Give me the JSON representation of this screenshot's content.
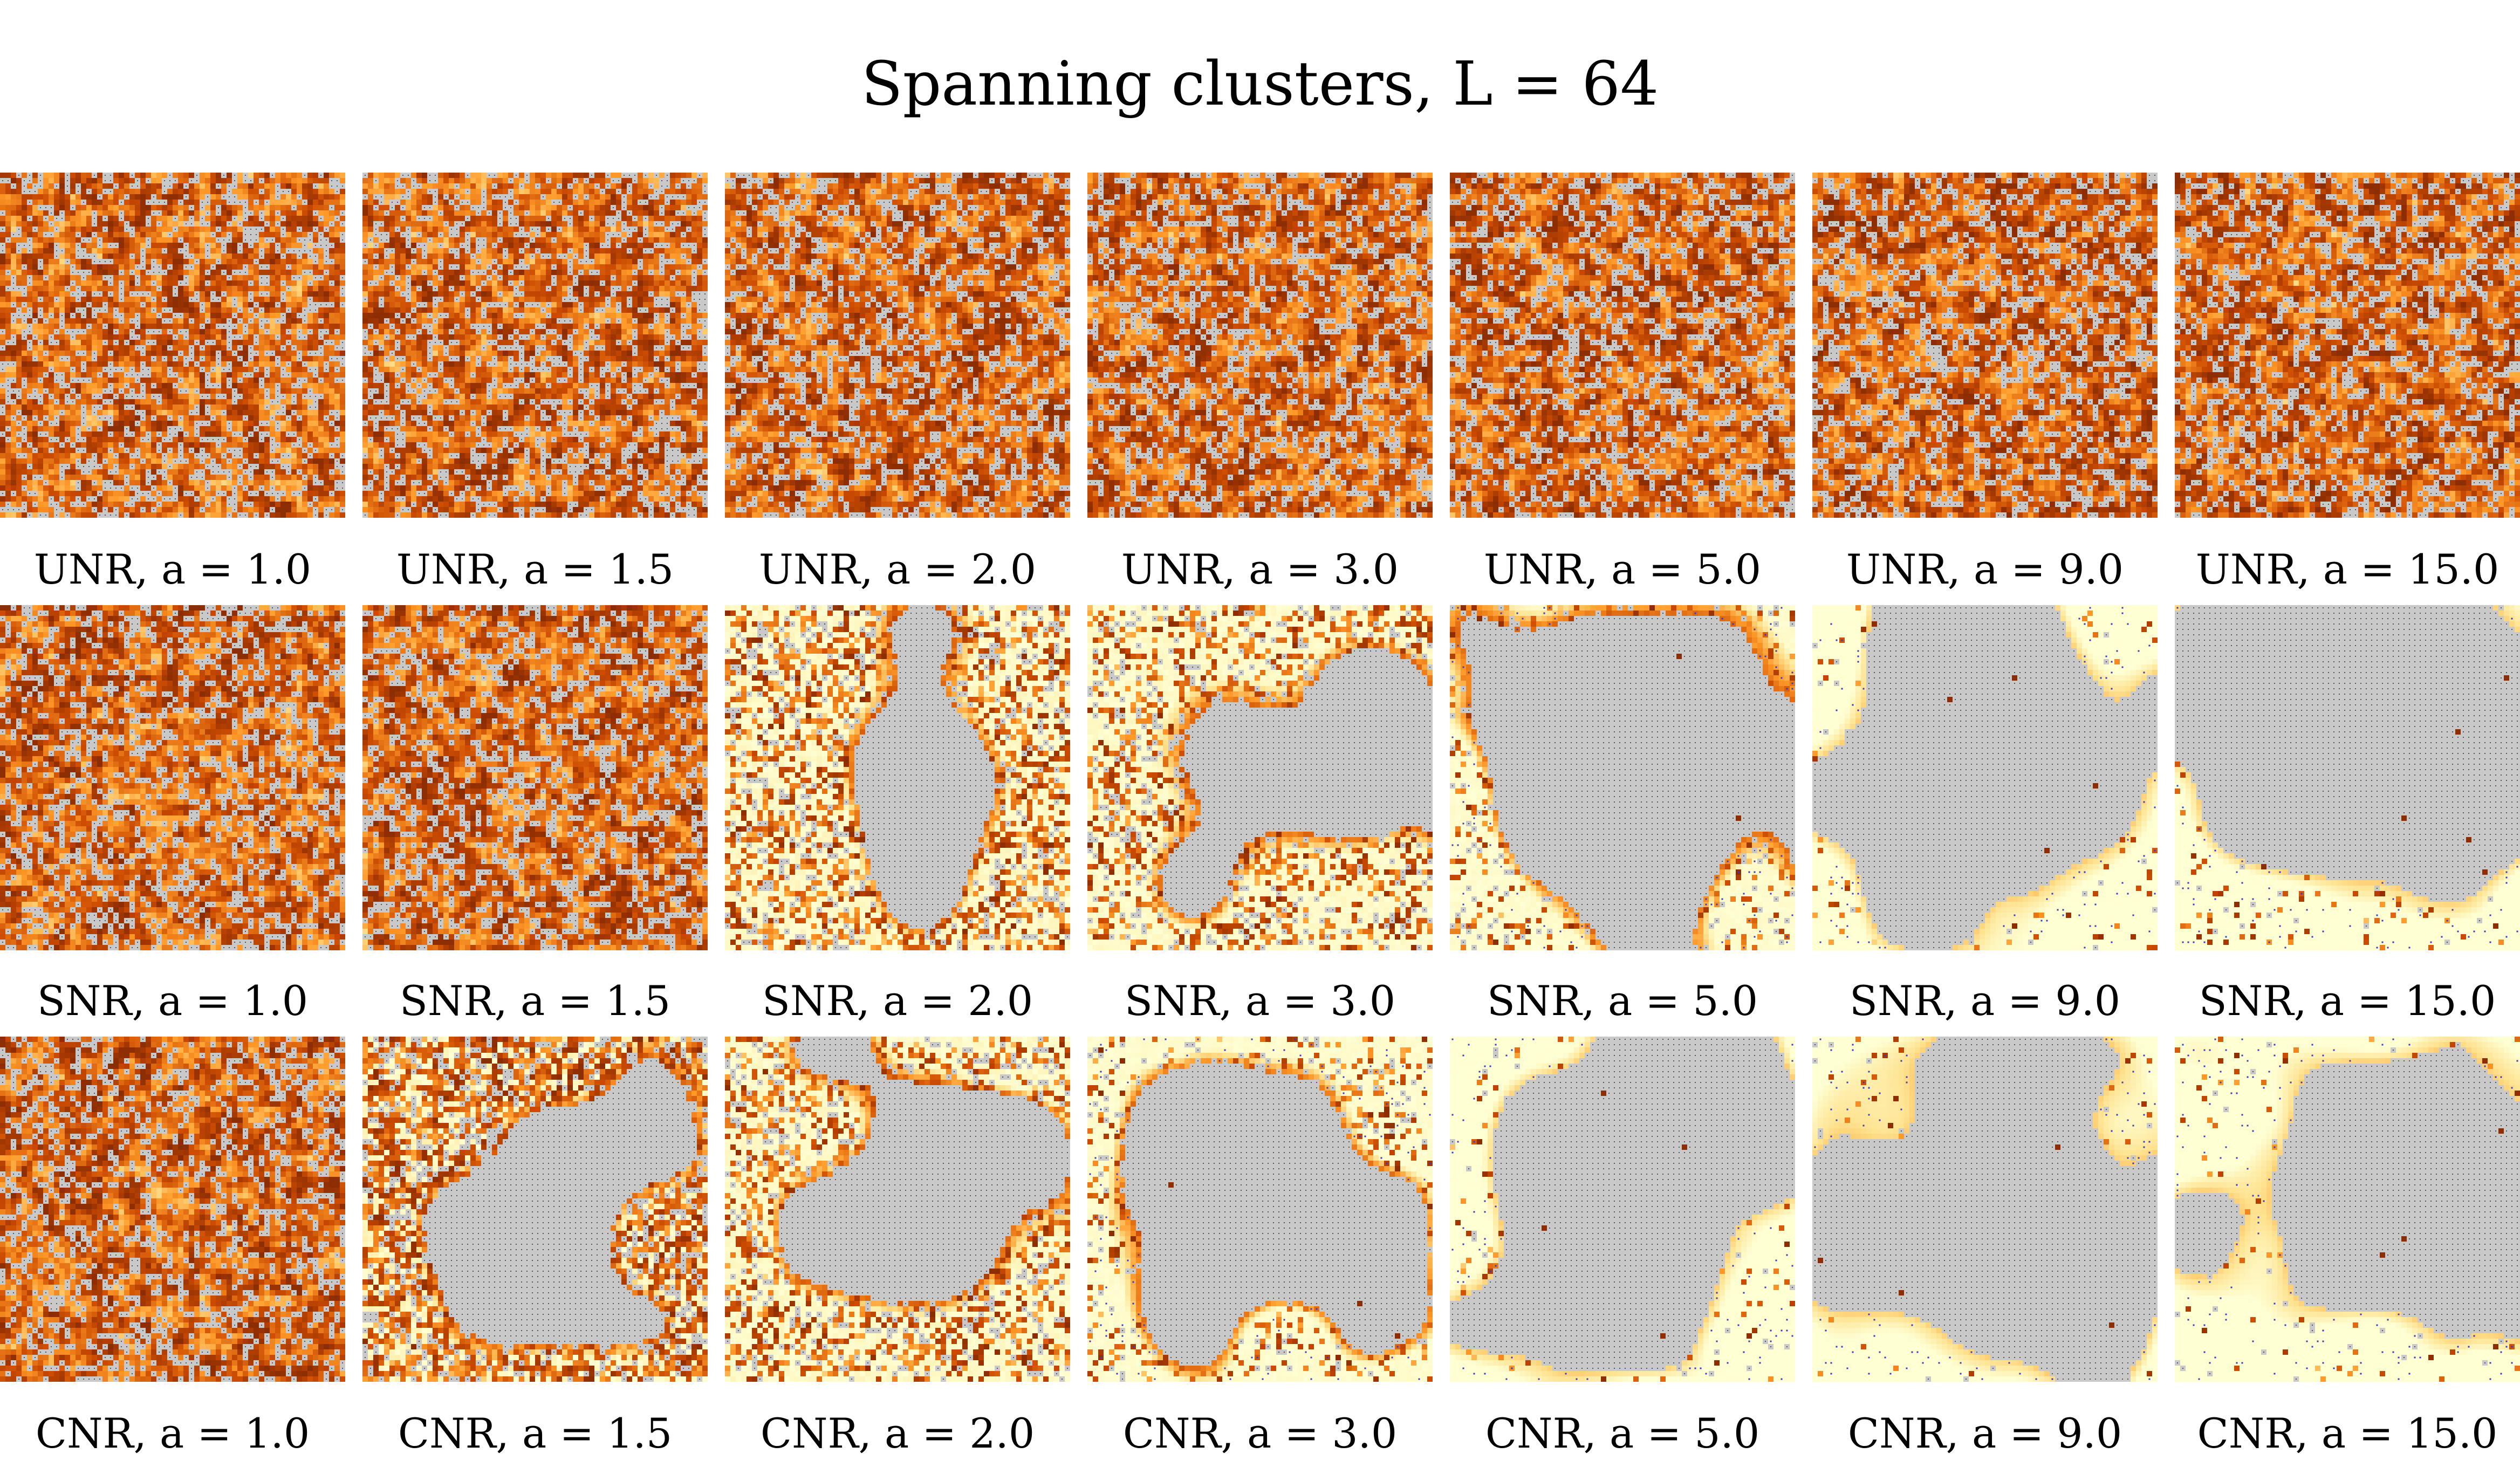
{
  "title": "Spanning clusters, L = 64",
  "lattice_size": 64,
  "colormap": {
    "empty": "#ffffd4",
    "low": "#fee391",
    "mid": "#fe9929",
    "high": "#cc4c02",
    "max": "#8c2d04",
    "spanning_cluster": "#c9c9c9",
    "spanning_dots": "#555555",
    "isolated_dots": "#3b3bbf"
  },
  "rows": [
    {
      "model": "UNR",
      "captions": [
        "UNR, a = 1.0",
        "UNR, a = 1.5",
        "UNR, a = 2.0",
        "UNR, a = 3.0",
        "UNR, a = 5.0",
        "UNR, a = 9.0",
        "UNR, a = 15.0"
      ]
    },
    {
      "model": "SNR",
      "captions": [
        "SNR, a = 1.0",
        "SNR, a = 1.5",
        "SNR, a = 2.0",
        "SNR, a = 3.0",
        "SNR, a = 5.0",
        "SNR, a = 9.0",
        "SNR, a = 15.0"
      ]
    },
    {
      "model": "CNR",
      "captions": [
        "CNR, a = 1.0",
        "CNR, a = 1.5",
        "CNR, a = 2.0",
        "CNR, a = 3.0",
        "CNR, a = 5.0",
        "CNR, a = 9.0",
        "CNR, a = 15.0"
      ]
    }
  ],
  "a_values": [
    1.0,
    1.5,
    2.0,
    3.0,
    5.0,
    9.0,
    15.0
  ]
}
